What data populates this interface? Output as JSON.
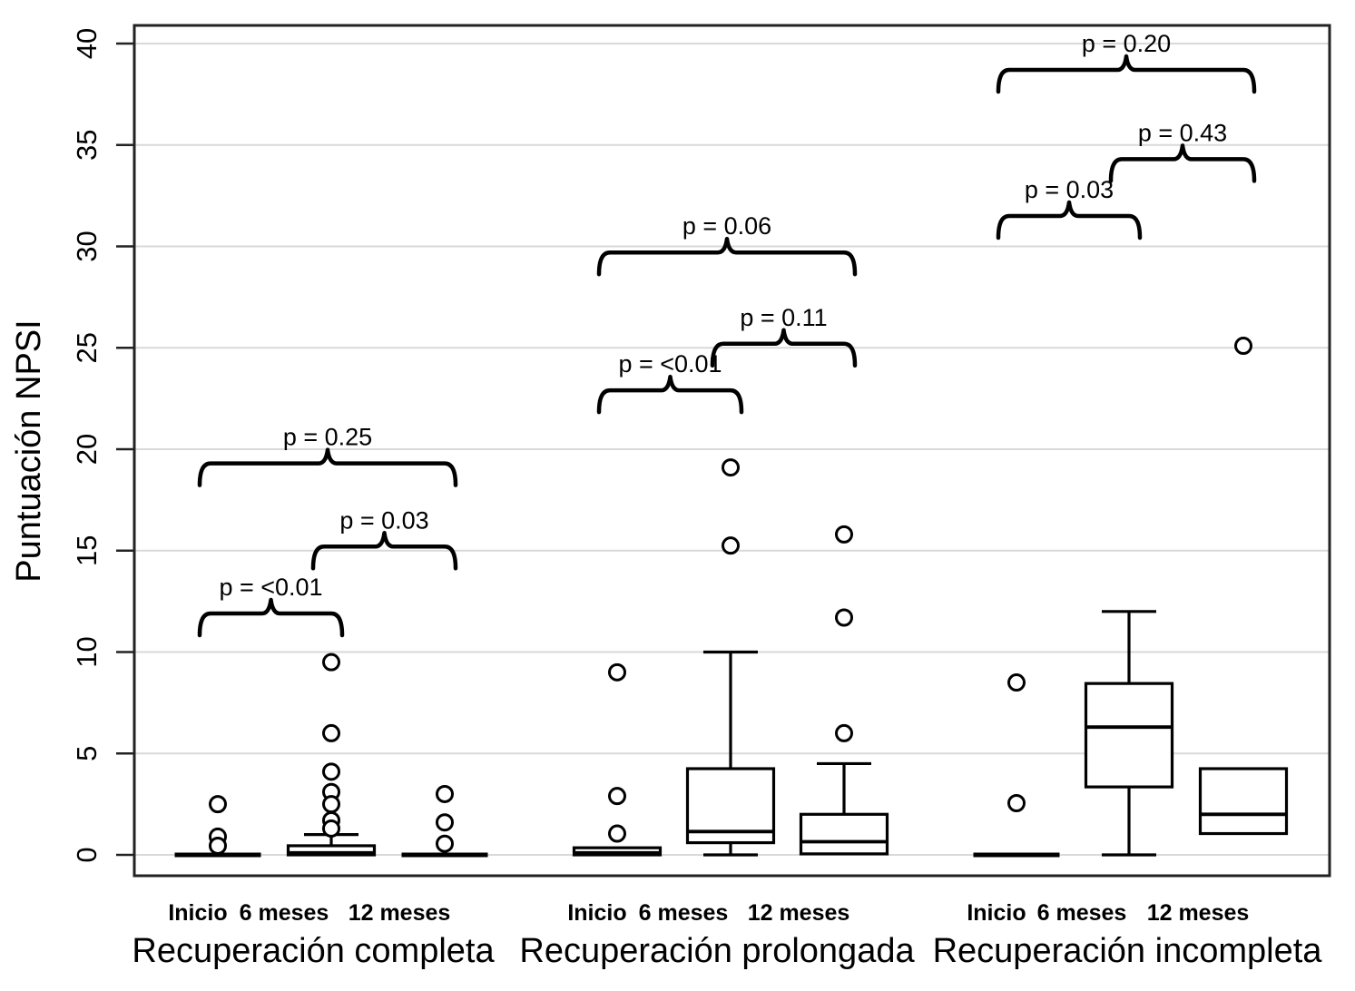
{
  "chart_data": {
    "type": "boxplot",
    "title": "",
    "ylabel": "Puntuación NPSI",
    "ylim": [
      0,
      40
    ],
    "yticks": [
      0,
      5,
      10,
      15,
      20,
      25,
      30,
      35,
      40
    ],
    "grid": true,
    "legend": "none",
    "timepoints": [
      "Inicio",
      "6 meses",
      "12 meses"
    ],
    "groups": [
      {
        "label": "Recuperación completa",
        "boxes": [
          {
            "timepoint": "Inicio",
            "q1": 0,
            "median": 0,
            "q3": 0,
            "whisker_low": null,
            "whisker_high": null,
            "outliers": [
              2.5,
              0.9,
              0.45
            ]
          },
          {
            "timepoint": "6 meses",
            "q1": 0,
            "median": 0.1,
            "q3": 0.45,
            "whisker_low": null,
            "whisker_high": 1.0,
            "outliers": [
              9.5,
              6.0,
              4.1,
              3.1,
              2.5,
              1.7,
              1.3
            ]
          },
          {
            "timepoint": "12 meses",
            "q1": 0,
            "median": 0,
            "q3": 0,
            "whisker_low": null,
            "whisker_high": null,
            "outliers": [
              3.0,
              1.6,
              0.55
            ]
          }
        ],
        "comparisons": [
          {
            "between": [
              "Inicio",
              "6 meses"
            ],
            "label": "p = <0.01",
            "height": 11.9
          },
          {
            "between": [
              "6 meses",
              "12 meses"
            ],
            "label": "p = 0.03",
            "height": 15.2
          },
          {
            "between": [
              "Inicio",
              "12 meses"
            ],
            "label": "p = 0.25",
            "height": 19.3
          }
        ]
      },
      {
        "label": "Recuperación prolongada",
        "boxes": [
          {
            "timepoint": "Inicio",
            "q1": 0,
            "median": 0.1,
            "q3": 0.35,
            "whisker_low": null,
            "whisker_high": null,
            "outliers": [
              9.0,
              2.9,
              1.05
            ]
          },
          {
            "timepoint": "6 meses",
            "q1": 0.6,
            "median": 1.15,
            "q3": 4.25,
            "whisker_low": 0,
            "whisker_high": 10.0,
            "outliers": [
              19.1,
              15.25
            ]
          },
          {
            "timepoint": "12 meses",
            "q1": 0.05,
            "median": 0.65,
            "q3": 2.0,
            "whisker_low": null,
            "whisker_high": 4.5,
            "outliers": [
              15.8,
              11.7,
              6.0
            ]
          }
        ],
        "comparisons": [
          {
            "between": [
              "Inicio",
              "6 meses"
            ],
            "label": "p = <0.01",
            "height": 22.9
          },
          {
            "between": [
              "6 meses",
              "12 meses"
            ],
            "label": "p = 0.11",
            "height": 25.2
          },
          {
            "between": [
              "Inicio",
              "12 meses"
            ],
            "label": "p = 0.06",
            "height": 29.7
          }
        ]
      },
      {
        "label": "Recuperación incompleta",
        "boxes": [
          {
            "timepoint": "Inicio",
            "q1": 0,
            "median": 0,
            "q3": 0,
            "whisker_low": null,
            "whisker_high": null,
            "outliers": [
              8.5,
              2.55
            ]
          },
          {
            "timepoint": "6 meses",
            "q1": 3.35,
            "median": 6.3,
            "q3": 8.45,
            "whisker_low": 0,
            "whisker_high": 12.0,
            "outliers": []
          },
          {
            "timepoint": "12 meses",
            "q1": 1.05,
            "median": 2.0,
            "q3": 4.25,
            "whisker_low": null,
            "whisker_high": null,
            "outliers": [
              25.1
            ]
          }
        ],
        "comparisons": [
          {
            "between": [
              "Inicio",
              "6 meses"
            ],
            "label": "p = 0.03",
            "height": 31.5
          },
          {
            "between": [
              "6 meses",
              "12 meses"
            ],
            "label": "p = 0.43",
            "height": 34.3
          },
          {
            "between": [
              "Inicio",
              "12 meses"
            ],
            "label": "p = 0.20",
            "height": 38.7
          }
        ]
      }
    ],
    "colors": {
      "stroke": "#000000",
      "grid": "#d9d9d9",
      "panel_border": "#222222",
      "background": "#ffffff"
    }
  }
}
